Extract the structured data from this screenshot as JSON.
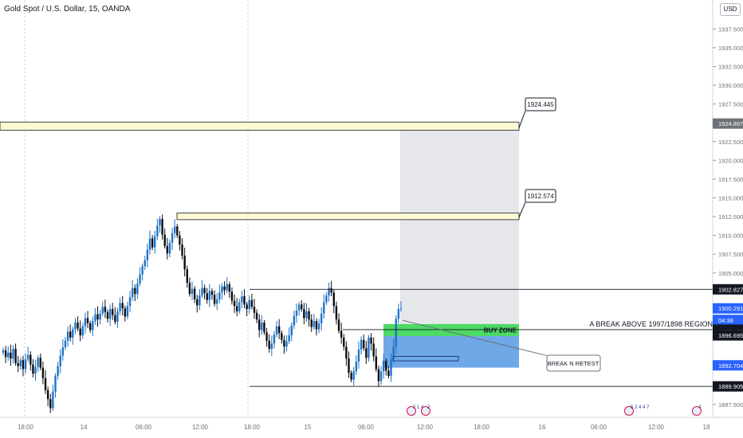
{
  "header": {
    "title": "Gold Spot / U.S. Dollar, 15, OANDA",
    "currency_button": "USD"
  },
  "colors": {
    "up_candle": "#1e73c8",
    "down_candle": "#0c0e15",
    "level_fill": "#fdf9d2",
    "buy_zone": "#4cd964",
    "blue_zone": "#6fa8e6",
    "projection_zone": "#e6e7eb",
    "badge_blue": "#2962ff",
    "badge_dark": "#131722",
    "badge_gray": "#6d7178"
  },
  "chart_data": {
    "type": "candlestick",
    "title": "Gold Spot / U.S. Dollar, 15, OANDA",
    "xlabel": "",
    "ylabel": "",
    "ylim": [
      1886.0,
      1940.5
    ],
    "y_ticks": [
      1937.5,
      1935.0,
      1932.5,
      1930.0,
      1927.5,
      1922.5,
      1920.0,
      1917.5,
      1915.0,
      1912.5,
      1910.0,
      1907.5,
      1905.0,
      1887.5
    ],
    "y_tick_labels": [
      "1937.500",
      "1935.000",
      "1932.500",
      "1930.000",
      "1927.500",
      "1922.500",
      "1920.000",
      "1917.500",
      "1915.000",
      "1912.500",
      "1910.000",
      "1907.500",
      "1905.000",
      "1887.500"
    ],
    "x_tick_labels": [
      "18:00",
      "14",
      "06:00",
      "12:00",
      "18:00",
      "15",
      "06:00",
      "12:00",
      "18:00",
      "16",
      "06:00",
      "12:00",
      "18"
    ],
    "close_path": [
      1894.7,
      1893.8,
      1894.4,
      1893.6,
      1894.9,
      1893.0,
      1892.6,
      1893.4,
      1892.2,
      1893.5,
      1894.1,
      1892.8,
      1891.6,
      1892.5,
      1893.7,
      1892.4,
      1891.0,
      1889.4,
      1888.2,
      1887.0,
      1889.2,
      1891.3,
      1892.6,
      1894.0,
      1895.1,
      1896.0,
      1897.2,
      1896.4,
      1897.5,
      1898.4,
      1897.6,
      1896.7,
      1897.9,
      1899.0,
      1898.3,
      1897.4,
      1898.6,
      1899.5,
      1898.8,
      1899.6,
      1900.5,
      1899.8,
      1898.9,
      1900.2,
      1899.4,
      1898.5,
      1899.9,
      1901.0,
      1900.3,
      1899.2,
      1900.6,
      1901.8,
      1903.0,
      1902.2,
      1903.6,
      1904.8,
      1905.9,
      1906.7,
      1908.1,
      1909.6,
      1908.4,
      1909.9,
      1911.3,
      1912.2,
      1910.1,
      1908.6,
      1907.6,
      1909.0,
      1910.3,
      1911.2,
      1910.0,
      1908.8,
      1907.3,
      1905.5,
      1903.7,
      1902.2,
      1902.9,
      1901.5,
      1900.7,
      1902.0,
      1903.0,
      1902.3,
      1901.4,
      1902.6,
      1902.1,
      1900.9,
      1901.5,
      1902.4,
      1903.2,
      1902.7,
      1903.5,
      1902.5,
      1901.3,
      1900.6,
      1899.9,
      1901.1,
      1901.9,
      1900.8,
      1900.2,
      1901.4,
      1900.5,
      1899.7,
      1898.8,
      1897.4,
      1898.4,
      1897.1,
      1896.0,
      1894.9,
      1895.6,
      1896.8,
      1897.9,
      1897.0,
      1896.1,
      1895.2,
      1895.9,
      1896.7,
      1898.0,
      1899.3,
      1900.0,
      1900.8,
      1900.2,
      1899.0,
      1899.9,
      1898.8,
      1897.8,
      1898.6,
      1897.5,
      1898.3,
      1899.6,
      1901.1,
      1902.0,
      1903.0,
      1902.4,
      1900.6,
      1898.8,
      1897.3,
      1896.4,
      1895.2,
      1893.6,
      1891.7,
      1890.8,
      1891.9,
      1893.2,
      1894.8,
      1896.1,
      1895.0,
      1893.7,
      1896.4,
      1895.6,
      1893.9,
      1892.2,
      1890.6,
      1891.9,
      1893.3,
      1892.0,
      1891.3,
      1893.5,
      1895.2,
      1898.9,
      1900.2,
      1900.3
    ],
    "levels": [
      {
        "name": "upper-target",
        "from": 1924.0,
        "to": 1925.1,
        "label": "1924.445"
      },
      {
        "name": "mid-target",
        "from": 1912.1,
        "to": 1913.0,
        "label": "1912.574"
      }
    ],
    "zones": [
      {
        "name": "buy-zone",
        "from": 1896.6,
        "to": 1898.2,
        "label": "BUY ZONE"
      },
      {
        "name": "blue-zone",
        "from": 1892.4,
        "to": 1896.6,
        "label": ""
      }
    ],
    "hlines": [
      1902.827,
      1897.458,
      1889.905
    ],
    "annotations": {
      "break_text": "A BREAK ABOVE 1997/1898 REGION",
      "retest_text": "BREAK N RETEST",
      "callout_upper": "1924.445",
      "callout_mid": "1912.574"
    },
    "price_badges": [
      {
        "label": "1924.897",
        "value": 1924.897,
        "color": "badge_gray"
      },
      {
        "label": "1902.827",
        "value": 1902.827,
        "color": "badge_dark"
      },
      {
        "label": "1900.291",
        "value": 1900.291,
        "color": "badge_blue"
      },
      {
        "label": "04:38",
        "value": 1898.75,
        "color": "badge_blue"
      },
      {
        "label": "1897.458",
        "value": 1897.458,
        "color": "badge_dark"
      },
      {
        "label": "1897.179",
        "value": 1897.179,
        "color": "badge_dark"
      },
      {
        "label": "1896.695",
        "value": 1896.695,
        "color": "badge_dark"
      },
      {
        "label": "1892.704",
        "value": 1892.704,
        "color": "badge_blue"
      },
      {
        "label": "1889.905",
        "value": 1889.905,
        "color": "badge_dark"
      }
    ],
    "event_markers": [
      {
        "label": "2 1 4",
        "x_index": 0
      },
      {
        "label": "2",
        "x_index": 1
      },
      {
        "label": "5 2 4 4 7",
        "x_index": 2
      },
      {
        "label": "4",
        "x_index": 3
      }
    ]
  }
}
